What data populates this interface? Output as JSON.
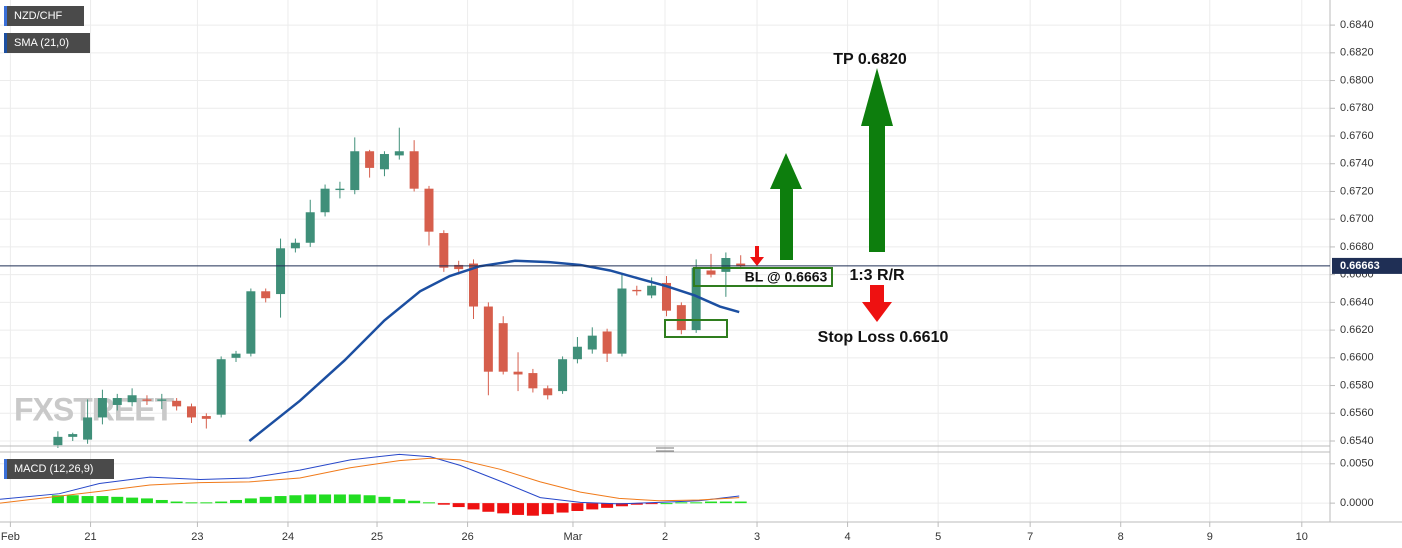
{
  "chart_data": [
    {
      "type": "candlestick",
      "title": "NZD/CHF",
      "watermark": "FXSTREET",
      "up_color": "#3f8f79",
      "down_color": "#d65e4c",
      "x": [
        0,
        1,
        2,
        3,
        4,
        5,
        6,
        7,
        8,
        9,
        10,
        11,
        12,
        13,
        14,
        15,
        16,
        17,
        18,
        19,
        20,
        21,
        22,
        23,
        24,
        25,
        26,
        27,
        28,
        29,
        30,
        31,
        32,
        33,
        34,
        35,
        36,
        37,
        38,
        39,
        40,
        41,
        42,
        43,
        44,
        45,
        46
      ],
      "open": [
        0.6537,
        0.6543,
        0.6541,
        0.6557,
        0.6566,
        0.6568,
        0.657,
        0.6569,
        0.6569,
        0.6565,
        0.6558,
        0.6559,
        0.66,
        0.6603,
        0.6648,
        0.6646,
        0.6679,
        0.6683,
        0.6705,
        0.6721,
        0.6721,
        0.6749,
        0.6736,
        0.6746,
        0.6749,
        0.6722,
        0.669,
        0.6667,
        0.6668,
        0.6637,
        0.6625,
        0.659,
        0.6589,
        0.6578,
        0.6576,
        0.6599,
        0.6606,
        0.6619,
        0.6603,
        0.6649,
        0.6645,
        0.6654,
        0.6638,
        0.662,
        0.6663,
        0.6662,
        0.6668
      ],
      "high": [
        0.6547,
        0.6546,
        0.657,
        0.6577,
        0.6574,
        0.6578,
        0.6573,
        0.6574,
        0.6571,
        0.6567,
        0.656,
        0.6601,
        0.6605,
        0.665,
        0.665,
        0.6686,
        0.6686,
        0.6714,
        0.6725,
        0.6727,
        0.6759,
        0.675,
        0.6749,
        0.6766,
        0.6757,
        0.6724,
        0.6692,
        0.667,
        0.6671,
        0.664,
        0.663,
        0.6604,
        0.6592,
        0.658,
        0.6601,
        0.6615,
        0.6622,
        0.6621,
        0.666,
        0.6652,
        0.6658,
        0.6659,
        0.664,
        0.6671,
        0.6675,
        0.6676,
        0.6674
      ],
      "low": [
        0.6535,
        0.654,
        0.6538,
        0.6552,
        0.6562,
        0.6565,
        0.6566,
        0.6563,
        0.6562,
        0.6553,
        0.6549,
        0.6557,
        0.6597,
        0.6601,
        0.664,
        0.6629,
        0.6676,
        0.668,
        0.6702,
        0.6715,
        0.6718,
        0.673,
        0.6731,
        0.6743,
        0.672,
        0.6681,
        0.6662,
        0.666,
        0.6628,
        0.6573,
        0.6588,
        0.6576,
        0.6575,
        0.657,
        0.6574,
        0.6596,
        0.6603,
        0.6597,
        0.6601,
        0.6645,
        0.6643,
        0.663,
        0.6617,
        0.6618,
        0.6658,
        0.6644,
        0.6664
      ],
      "close": [
        0.6543,
        0.6545,
        0.6557,
        0.6571,
        0.6571,
        0.6573,
        0.6569,
        0.657,
        0.6565,
        0.6557,
        0.6556,
        0.6599,
        0.6603,
        0.6648,
        0.6643,
        0.6679,
        0.6683,
        0.6705,
        0.6722,
        0.6722,
        0.6749,
        0.6737,
        0.6747,
        0.6749,
        0.6722,
        0.6691,
        0.6665,
        0.6664,
        0.6637,
        0.659,
        0.659,
        0.6588,
        0.6578,
        0.6573,
        0.6599,
        0.6608,
        0.6616,
        0.6603,
        0.665,
        0.6648,
        0.6652,
        0.6634,
        0.662,
        0.6665,
        0.666,
        0.6672,
        0.6666
      ],
      "series": [
        {
          "name": "SMA (21,0)",
          "color": "#1c4fa1",
          "x": [
            12.9,
            16.3,
            19.3,
            22,
            24.4,
            26.4,
            28.4,
            30.8,
            33.1,
            35.2,
            37.2,
            39.2,
            40.9,
            42.9,
            44.6,
            45.9
          ],
          "values": [
            0.654,
            0.6569,
            0.6598,
            0.6627,
            0.6648,
            0.6659,
            0.6666,
            0.667,
            0.6669,
            0.6667,
            0.6663,
            0.6657,
            0.6652,
            0.6645,
            0.6637,
            0.6633
          ]
        }
      ],
      "last_price": 0.66663,
      "xlim": [
        -3.9,
        85.7
      ],
      "xticks": [
        {
          "value": -3.2,
          "label": "Feb"
        },
        {
          "value": 2.2,
          "label": "21"
        },
        {
          "value": 9.4,
          "label": "23"
        },
        {
          "value": 15.5,
          "label": "24"
        },
        {
          "value": 21.5,
          "label": "25"
        },
        {
          "value": 27.6,
          "label": "26"
        },
        {
          "value": 34.7,
          "label": "Mar"
        },
        {
          "value": 40.9,
          "label": "2"
        },
        {
          "value": 47.1,
          "label": "3"
        },
        {
          "value": 53.2,
          "label": "4"
        },
        {
          "value": 59.3,
          "label": "5"
        },
        {
          "value": 65.5,
          "label": "7"
        },
        {
          "value": 71.6,
          "label": "8"
        },
        {
          "value": 77.6,
          "label": "9"
        },
        {
          "value": 83.8,
          "label": "10"
        }
      ],
      "ylim": [
        0.65364,
        0.68581
      ],
      "yticks": [
        {
          "value": 0.654,
          "label": "0.6540"
        },
        {
          "value": 0.656,
          "label": "0.6560"
        },
        {
          "value": 0.658,
          "label": "0.6580"
        },
        {
          "value": 0.66,
          "label": "0.6600"
        },
        {
          "value": 0.662,
          "label": "0.6620"
        },
        {
          "value": 0.664,
          "label": "0.6640"
        },
        {
          "value": 0.666,
          "label": "0.6660"
        },
        {
          "value": 0.668,
          "label": "0.6680"
        },
        {
          "value": 0.67,
          "label": "0.6700"
        },
        {
          "value": 0.672,
          "label": "0.6720"
        },
        {
          "value": 0.674,
          "label": "0.6740"
        },
        {
          "value": 0.676,
          "label": "0.6760"
        },
        {
          "value": 0.678,
          "label": "0.6780"
        },
        {
          "value": 0.68,
          "label": "0.6800"
        },
        {
          "value": 0.682,
          "label": "0.6820"
        },
        {
          "value": 0.684,
          "label": "0.6840"
        }
      ],
      "grid": true,
      "annotations": [
        "TP 0.6820",
        "BL @ 0.6663",
        "1:3 R/R",
        "Stop Loss 0.6610"
      ]
    },
    {
      "type": "macd",
      "title": "MACD (12,26,9)",
      "x": [
        0,
        1,
        2,
        3,
        4,
        5,
        6,
        7,
        8,
        9,
        10,
        11,
        12,
        13,
        14,
        15,
        16,
        17,
        18,
        19,
        20,
        21,
        22,
        23,
        24,
        25,
        26,
        27,
        28,
        29,
        30,
        31,
        32,
        33,
        34,
        35,
        36,
        37,
        38,
        39,
        40,
        41,
        42,
        43,
        44,
        45,
        46
      ],
      "histogram": [
        0.001,
        0.001,
        0.0009,
        0.0009,
        0.0008,
        0.0007,
        0.0006,
        0.0004,
        0.0002,
        0.0001,
        0.0001,
        0.0002,
        0.0004,
        0.0006,
        0.0008,
        0.0009,
        0.001,
        0.0011,
        0.0011,
        0.0011,
        0.0011,
        0.001,
        0.0008,
        0.0005,
        0.0003,
        0.0001,
        -0.0002,
        -0.0005,
        -0.0008,
        -0.0011,
        -0.0013,
        -0.0015,
        -0.0016,
        -0.0014,
        -0.0012,
        -0.001,
        -0.0008,
        -0.0006,
        -0.0004,
        -0.0002,
        -0.0001,
        0.0,
        0.0001,
        0.0001,
        0.0002,
        0.0002,
        0.0002
      ],
      "pos_color": "#22dd22",
      "neg_color": "#ee1111",
      "series": [
        {
          "color": "#2747c9",
          "x": [
            -3.9,
            0.1,
            2.8,
            6.2,
            9.6,
            12.9,
            16.3,
            19.7,
            23,
            25.1,
            27.1,
            29.8,
            32.5,
            35.2,
            37.8,
            40.5,
            43.2,
            45.9
          ],
          "values": [
            0.0005,
            0.0012,
            0.0025,
            0.0033,
            0.003,
            0.0032,
            0.0042,
            0.0055,
            0.0062,
            0.0059,
            0.0048,
            0.0028,
            0.0007,
            0.0001,
            -0.0001,
            0.0001,
            0.0003,
            0.0009
          ]
        },
        {
          "color": "#f07a1a",
          "x": [
            -3.9,
            2.8,
            6.2,
            9.6,
            12.9,
            16.3,
            19.7,
            23,
            25.1,
            27.1,
            29.8,
            32.5,
            35.2,
            37.8,
            40.5,
            43.2,
            45.9
          ],
          "values": [
            0.0,
            0.0015,
            0.0023,
            0.0026,
            0.0027,
            0.0032,
            0.0045,
            0.0054,
            0.0057,
            0.0055,
            0.0043,
            0.0027,
            0.0014,
            0.0006,
            0.0003,
            0.0004,
            0.0007
          ]
        }
      ],
      "ylim": [
        -0.0024,
        0.0065
      ],
      "yticks": [
        {
          "value": 0,
          "label": "0.0000"
        },
        {
          "value": 0.005,
          "label": "0.0050"
        }
      ]
    }
  ]
}
